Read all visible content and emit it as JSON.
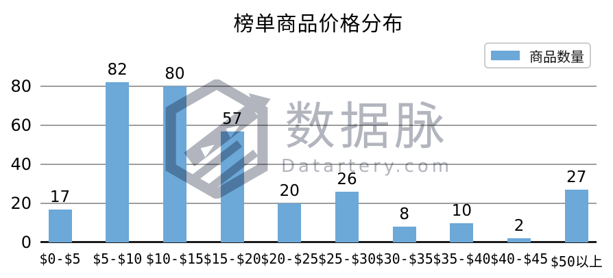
{
  "title": "榜单商品价格分布",
  "legend": {
    "label": "商品数量"
  },
  "watermark": {
    "brand": "数据脉",
    "domain_text": "Datartery.com",
    "logo_icon": "hexagon-trend-arrow-icon"
  },
  "colors": {
    "bar": "#6CA8D8",
    "grid": "#9E9E9E",
    "axis": "#1A1A1A",
    "watermark": "#B2B5BD",
    "legend_border": "#CCCCCC",
    "text": "#000000"
  },
  "chart_data": {
    "type": "bar",
    "title": "榜单商品价格分布",
    "categories": [
      "$0-$5",
      "$5-$10",
      "$10-$15",
      "$15-$20",
      "$20-$25",
      "$25-$30",
      "$30-$35",
      "$35-$40",
      "$40-$45",
      "$50以上"
    ],
    "values": [
      17,
      82,
      80,
      57,
      20,
      26,
      8,
      10,
      2,
      27
    ],
    "series_name": "商品数量",
    "data_labels_shown": true,
    "yticks": [
      0,
      20,
      40,
      60,
      80
    ],
    "ylim": [
      0,
      90
    ],
    "grid": true,
    "legend_position": "top-right",
    "xlabel": "",
    "ylabel": ""
  }
}
